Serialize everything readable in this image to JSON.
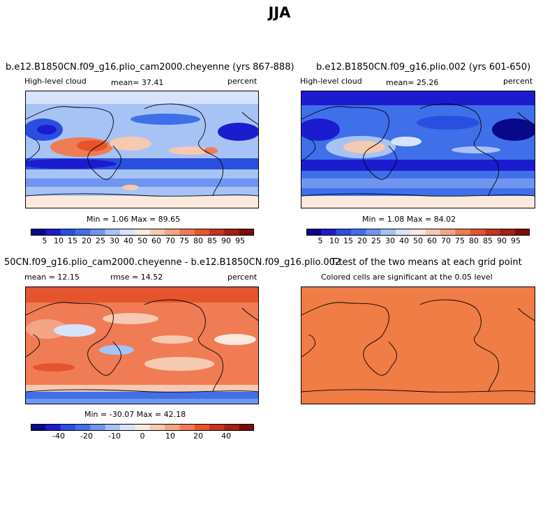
{
  "figure_title": "JJA",
  "colors": {
    "abs_palette": [
      "#08088a",
      "#1c1ccf",
      "#2a4fe0",
      "#3f70ea",
      "#6f95ee",
      "#a7c3f6",
      "#d6e3fa",
      "#fbe9de",
      "#f6c9b1",
      "#f3a585",
      "#ef7c55",
      "#e5542d",
      "#c9321c",
      "#a51d14",
      "#7a0b0b"
    ],
    "diff_palette": [
      "#08088a",
      "#1c1ccf",
      "#2a4fe0",
      "#3f70ea",
      "#6f95ee",
      "#a7c3f6",
      "#d6e3fa",
      "#fbe9de",
      "#f6c9b1",
      "#f3a585",
      "#ef7c55",
      "#e5542d",
      "#c9321c",
      "#a51d14",
      "#7a0b0b"
    ],
    "ttest_fill": "#f07c46"
  },
  "chart_data": [
    {
      "type": "heatmap",
      "title": "b.e12.B1850CN.f09_g16.plio_cam2000.cheyenne (yrs 867-888)",
      "left_label": "High-level cloud",
      "mean_label": "mean=  37.41",
      "units": "percent",
      "stats": "Min =   1.06 Max =  89.65",
      "mean": 37.41,
      "min": 1.06,
      "max": 89.65,
      "colorbar_labels": [
        "5",
        "10",
        "15",
        "20",
        "25",
        "30",
        "40",
        "50",
        "60",
        "70",
        "75",
        "80",
        "85",
        "90",
        "95"
      ]
    },
    {
      "type": "heatmap",
      "title": "b.e12.B1850CN.f09_g16.plio.002 (yrs 601-650)",
      "left_label": "High-level cloud",
      "mean_label": "mean=  25.26",
      "units": "percent",
      "stats": "Min =   1.08 Max =  84.02",
      "mean": 25.26,
      "min": 1.08,
      "max": 84.02,
      "colorbar_labels": [
        "5",
        "10",
        "15",
        "20",
        "25",
        "30",
        "40",
        "50",
        "60",
        "70",
        "75",
        "80",
        "85",
        "90",
        "95"
      ]
    },
    {
      "type": "heatmap",
      "title": "50CN.f09_g16.plio_cam2000.cheyenne - b.e12.B1850CN.f09_g16.plio.002",
      "left_label": "mean =  12.15",
      "mid_label": "rmse =  14.52",
      "units": "percent",
      "stats": "Min = -30.07 Max =  42.18",
      "mean": 12.15,
      "rmse": 14.52,
      "min": -30.07,
      "max": 42.18,
      "colorbar_labels": [
        "-40",
        "-20",
        "-10",
        "0",
        "10",
        "20",
        "40"
      ]
    },
    {
      "type": "heatmap",
      "title": "T-test of the two means at each grid point",
      "subtitle": "Colored cells are significant at the 0.05 level"
    }
  ]
}
